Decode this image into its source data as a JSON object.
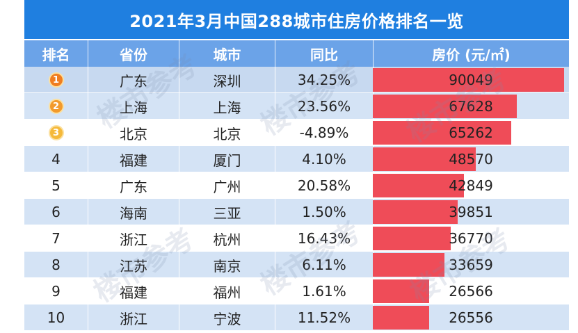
{
  "title": "2021年3月中国288城市住房价格排名一览",
  "headers": [
    "排名",
    "省份",
    "城市",
    "同比",
    "房价 (元/㎡)"
  ],
  "rows": [
    {
      "rank": "1",
      "province": "广东",
      "city": "深圳",
      "yoy": "34.25%",
      "price": "90049"
    },
    {
      "rank": "2",
      "province": "上海",
      "city": "上海",
      "yoy": "23.56%",
      "price": "67628"
    },
    {
      "rank": "3",
      "province": "北京",
      "city": "北京",
      "yoy": "-4.89%",
      "price": "65262"
    },
    {
      "rank": "4",
      "province": "福建",
      "city": "厦门",
      "yoy": "4.10%",
      "price": "48570"
    },
    {
      "rank": "5",
      "province": "广东",
      "city": "广州",
      "yoy": "20.58%",
      "price": "42849"
    },
    {
      "rank": "6",
      "province": "海南",
      "city": "三亚",
      "yoy": "1.50%",
      "price": "39851"
    },
    {
      "rank": "7",
      "province": "浙江",
      "city": "杭州",
      "yoy": "16.43%",
      "price": "36770"
    },
    {
      "rank": "8",
      "province": "江苏",
      "city": "南京",
      "yoy": "6.11%",
      "price": "33659"
    },
    {
      "rank": "9",
      "province": "福建",
      "city": "福州",
      "yoy": "1.61%",
      "price": "26566"
    },
    {
      "rank": "10",
      "province": "浙江",
      "city": "宁波",
      "yoy": "11.52%",
      "price": "26556"
    }
  ],
  "medal_colors": [
    "#f07d20",
    "#f29a2c",
    "#f5b93a"
  ],
  "bar_color": "#ef4c58",
  "watermark": "楼市参考",
  "chart_data": {
    "type": "table",
    "title": "2021年3月中国288城市住房价格排名一览",
    "columns": [
      "排名",
      "省份",
      "城市",
      "同比",
      "房价 (元/㎡)"
    ],
    "categories": [
      "深圳",
      "上海",
      "北京",
      "厦门",
      "广州",
      "三亚",
      "杭州",
      "南京",
      "福州",
      "宁波"
    ],
    "values": [
      90049,
      67628,
      65262,
      48570,
      42849,
      39851,
      36770,
      33659,
      26566,
      26556
    ],
    "xlim": [
      0,
      90049
    ]
  }
}
